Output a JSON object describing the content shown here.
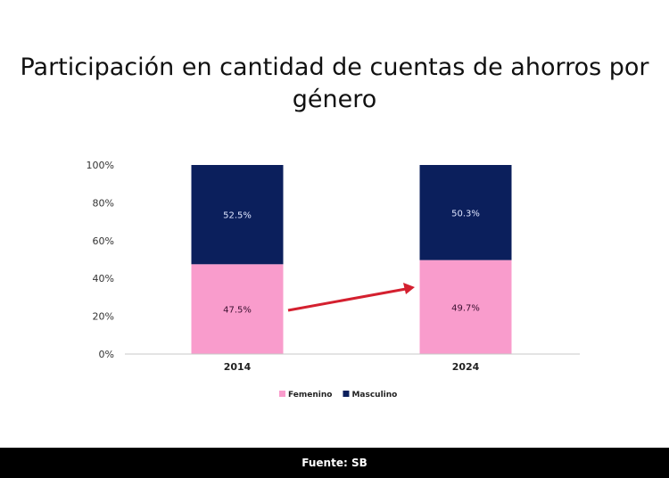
{
  "chart_data": {
    "type": "bar",
    "stacked": true,
    "title": "Participación en cantidad de cuentas de ahorros por género",
    "categories": [
      "2014",
      "2024"
    ],
    "series": [
      {
        "name": "Femenino",
        "values": [
          47.5,
          49.7
        ],
        "labels": [
          "47.5%",
          "49.7%"
        ],
        "color": "#f99ccc",
        "label_color": "#3a1030"
      },
      {
        "name": "Masculino",
        "values": [
          52.5,
          50.3
        ],
        "labels": [
          "52.5%",
          "50.3%"
        ],
        "color": "#0b1f5c",
        "label_color": "#dfe6ff"
      }
    ],
    "yticks": [
      "0%",
      "20%",
      "40%",
      "60%",
      "80%",
      "100%"
    ],
    "ylim": [
      0,
      100
    ],
    "grid": false,
    "legend": "bottom",
    "annotation": {
      "type": "arrow",
      "color": "#d4202f",
      "from": "2014",
      "to": "2024"
    }
  },
  "footer": {
    "source": "Fuente: SB"
  }
}
